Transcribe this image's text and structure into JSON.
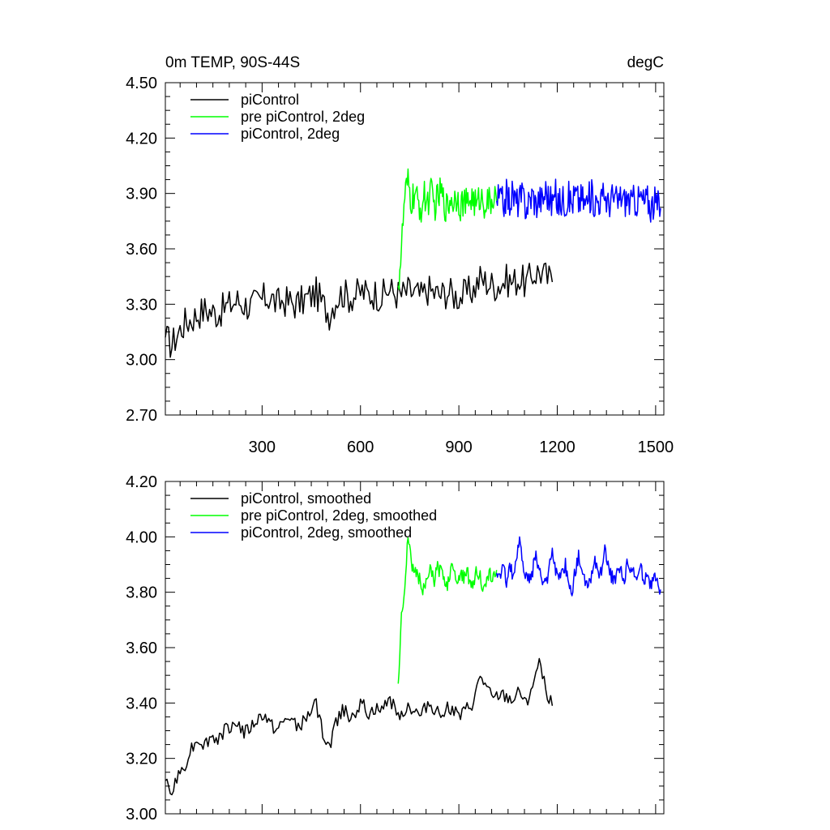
{
  "chart_data": [
    {
      "type": "line",
      "title_left": "0m TEMP, 90S-44S",
      "title_right": "degC",
      "xlim": [
        5,
        1525
      ],
      "ylim": [
        2.7,
        4.5
      ],
      "xticks": [
        300,
        600,
        900,
        1200,
        1500
      ],
      "xtick_labels": [
        "300",
        "600",
        "900",
        "1200",
        "1500"
      ],
      "yticks": [
        2.7,
        3.0,
        3.3,
        3.6,
        3.9,
        4.2,
        4.5
      ],
      "ytick_labels": [
        "2.70",
        "3.00",
        "3.30",
        "3.60",
        "3.90",
        "4.20",
        "4.50"
      ],
      "legend_position": "top-left",
      "series": [
        {
          "name": "piControl",
          "color": "#000000",
          "x_start": 5,
          "x_step": 20,
          "values": [
            3.12,
            3.08,
            3.15,
            3.2,
            3.22,
            3.25,
            3.27,
            3.26,
            3.25,
            3.28,
            3.3,
            3.32,
            3.3,
            3.29,
            3.31,
            3.33,
            3.34,
            3.3,
            3.32,
            3.31,
            3.3,
            3.32,
            3.34,
            3.36,
            3.3,
            3.25,
            3.33,
            3.36,
            3.34,
            3.35,
            3.37,
            3.35,
            3.36,
            3.34,
            3.38,
            3.36,
            3.35,
            3.37,
            3.36,
            3.34,
            3.38,
            3.36,
            3.35,
            3.37,
            3.35,
            3.34,
            3.36,
            3.38,
            3.44,
            3.42,
            3.4,
            3.41,
            3.43,
            3.42,
            3.44,
            3.41,
            3.46,
            3.48,
            3.45,
            3.42
          ]
        },
        {
          "name": "pre piControl, 2deg",
          "color": "#00ff00",
          "x_start": 715,
          "x_step": 10,
          "values": [
            3.4,
            3.6,
            3.88,
            3.95,
            3.85,
            3.9,
            3.84,
            3.82,
            3.88,
            3.86,
            3.9,
            3.83,
            3.87,
            3.91,
            3.85,
            3.82,
            3.88,
            3.86,
            3.9,
            3.84,
            3.86,
            3.83,
            3.88,
            3.87,
            3.82,
            3.89,
            3.85,
            3.86,
            3.84,
            3.88,
            3.86
          ]
        },
        {
          "name": "piControl, 2deg",
          "color": "#0000ff",
          "x_start": 1015,
          "x_step": 10,
          "values": [
            3.86,
            3.88,
            3.84,
            3.89,
            3.86,
            3.9,
            3.85,
            3.87,
            3.88,
            3.83,
            3.86,
            3.9,
            3.84,
            3.88,
            3.86,
            3.92,
            3.87,
            3.85,
            3.89,
            3.84,
            3.87,
            3.86,
            3.88,
            3.85,
            3.9,
            3.86,
            3.88,
            3.84,
            3.87,
            3.89,
            3.85,
            3.87,
            3.86,
            3.9,
            3.84,
            3.88,
            3.87,
            3.85,
            3.89,
            3.86,
            3.88,
            3.84,
            3.87,
            3.86,
            3.88,
            3.85,
            3.87,
            3.83,
            3.85,
            3.84,
            3.82
          ]
        }
      ]
    },
    {
      "type": "line",
      "xlim": [
        5,
        1525
      ],
      "ylim": [
        3.0,
        4.2
      ],
      "xticks": [
        300,
        600,
        900,
        1200,
        1500
      ],
      "yticks": [
        3.0,
        3.2,
        3.4,
        3.6,
        3.8,
        4.0,
        4.2
      ],
      "ytick_labels": [
        "3.00",
        "3.20",
        "3.40",
        "3.60",
        "3.80",
        "4.00",
        "4.20"
      ],
      "legend_position": "top-left",
      "series": [
        {
          "name": "piControl, smoothed",
          "color": "#000000",
          "x_start": 5,
          "x_step": 20,
          "values": [
            3.12,
            3.07,
            3.14,
            3.18,
            3.24,
            3.27,
            3.25,
            3.28,
            3.27,
            3.3,
            3.32,
            3.33,
            3.29,
            3.31,
            3.34,
            3.36,
            3.32,
            3.3,
            3.33,
            3.35,
            3.31,
            3.33,
            3.36,
            3.4,
            3.29,
            3.24,
            3.33,
            3.38,
            3.35,
            3.37,
            3.4,
            3.36,
            3.38,
            3.37,
            3.42,
            3.38,
            3.36,
            3.39,
            3.37,
            3.35,
            3.4,
            3.38,
            3.36,
            3.39,
            3.37,
            3.35,
            3.38,
            3.4,
            3.5,
            3.45,
            3.41,
            3.43,
            3.42,
            3.41,
            3.44,
            3.4,
            3.47,
            3.54,
            3.45,
            3.39
          ]
        },
        {
          "name": "pre piControl, 2deg, smoothed",
          "color": "#00ff00",
          "x_start": 715,
          "x_step": 10,
          "values": [
            3.47,
            3.72,
            3.8,
            4.02,
            3.9,
            3.88,
            3.86,
            3.83,
            3.8,
            3.86,
            3.88,
            3.84,
            3.89,
            3.87,
            3.85,
            3.83,
            3.88,
            3.9,
            3.84,
            3.87,
            3.85,
            3.89,
            3.82,
            3.84,
            3.88,
            3.86,
            3.8,
            3.83,
            3.87,
            3.85,
            3.88
          ]
        },
        {
          "name": "piControl, 2deg, smoothed",
          "color": "#0000ff",
          "x_start": 1015,
          "x_step": 10,
          "values": [
            3.87,
            3.85,
            3.89,
            3.84,
            3.9,
            3.86,
            3.92,
            3.98,
            3.9,
            3.86,
            3.84,
            3.88,
            3.94,
            3.87,
            3.85,
            3.82,
            3.89,
            3.96,
            3.88,
            3.84,
            3.86,
            3.9,
            3.83,
            3.8,
            3.88,
            3.93,
            3.86,
            3.84,
            3.82,
            3.87,
            3.91,
            3.85,
            3.88,
            3.95,
            3.89,
            3.86,
            3.84,
            3.9,
            3.87,
            3.83,
            3.92,
            3.88,
            3.86,
            3.85,
            3.89,
            3.84,
            3.87,
            3.82,
            3.85,
            3.83,
            3.81
          ]
        }
      ]
    }
  ]
}
